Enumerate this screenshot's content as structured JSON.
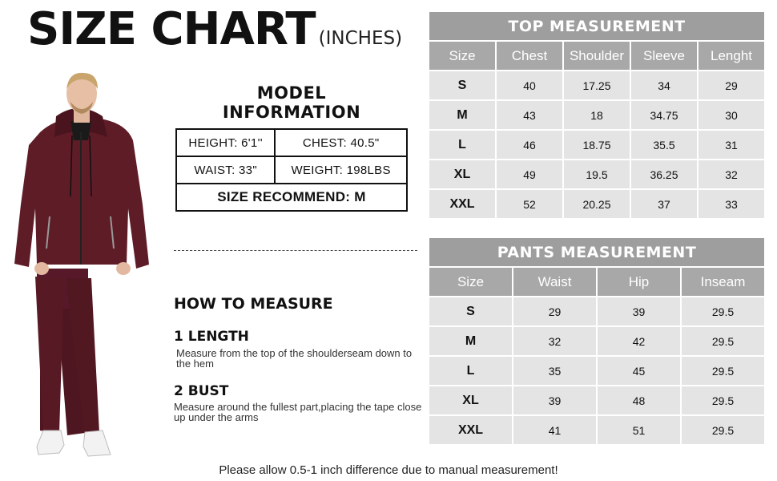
{
  "header": {
    "title": "SIZE CHART",
    "unit": "(INCHES)"
  },
  "model_info": {
    "title_line1": "MODEL",
    "title_line2": "INFORMATION",
    "height": "HEIGHT:  6'1''",
    "chest": "CHEST:  40.5\"",
    "waist": "WAIST:  33\"",
    "weight": "WEIGHT:  198LBS",
    "recommend": "SIZE RECOMMEND:  M"
  },
  "how_to": {
    "title": "HOW TO MEASURE",
    "steps": [
      {
        "title": "1 LENGTH",
        "desc": "Measure from the top of the shoulderseam down to the hem"
      },
      {
        "title": "2 BUST",
        "desc": "Measure around the fullest part,placing the tape close up under the arms"
      }
    ]
  },
  "top_table": {
    "title": "TOP MEASUREMENT",
    "headers": [
      "Size",
      "Chest",
      "Shoulder",
      "Sleeve",
      "Lenght"
    ],
    "rows": [
      [
        "S",
        "40",
        "17.25",
        "34",
        "29"
      ],
      [
        "M",
        "43",
        "18",
        "34.75",
        "30"
      ],
      [
        "L",
        "46",
        "18.75",
        "35.5",
        "31"
      ],
      [
        "XL",
        "49",
        "19.5",
        "36.25",
        "32"
      ],
      [
        "XXL",
        "52",
        "20.25",
        "37",
        "33"
      ]
    ]
  },
  "pants_table": {
    "title": "PANTS MEASUREMENT",
    "headers": [
      "Size",
      "Waist",
      "Hip",
      "Inseam"
    ],
    "rows": [
      [
        "S",
        "29",
        "39",
        "29.5"
      ],
      [
        "M",
        "32",
        "42",
        "29.5"
      ],
      [
        "L",
        "35",
        "45",
        "29.5"
      ],
      [
        "XL",
        "39",
        "48",
        "29.5"
      ],
      [
        "XXL",
        "41",
        "51",
        "29.5"
      ]
    ]
  },
  "footer": "Please allow 0.5-1 inch difference due to manual measurement!",
  "colors": {
    "garment": "#5a1a24",
    "header_gray": "#a8a8a8",
    "cell_gray": "#e4e4e4"
  }
}
